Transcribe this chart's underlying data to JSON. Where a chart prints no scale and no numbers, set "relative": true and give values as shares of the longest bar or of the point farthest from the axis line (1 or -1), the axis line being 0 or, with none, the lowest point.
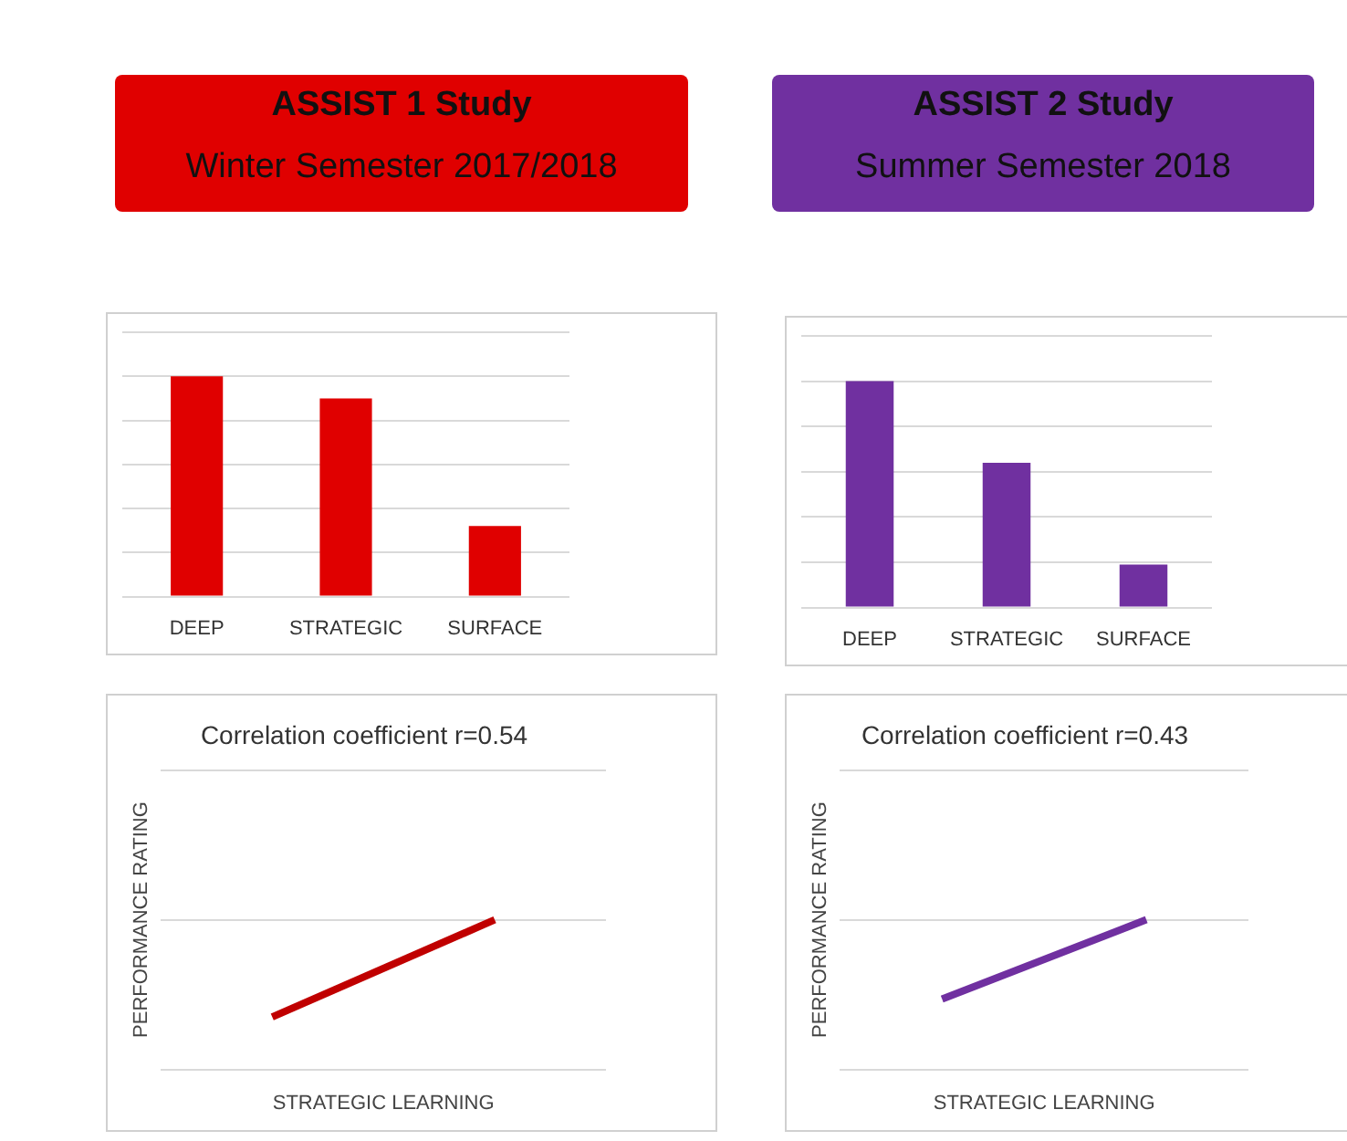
{
  "chart_data": [
    {
      "type": "bar",
      "title": "ASSIST 1 Study",
      "subtitle": "Winter Semester 2017/2018",
      "categories": [
        "DEEP",
        "STRATEGIC",
        "SURFACE"
      ],
      "values": [
        1,
        0.9,
        0.32
      ],
      "color": "#e00000",
      "relative": true,
      "grid": "y"
    },
    {
      "type": "bar",
      "title": "ASSIST 2 Study",
      "subtitle": "Summer Semester 2018",
      "categories": [
        "DEEP",
        "STRATEGIC",
        "SURFACE"
      ],
      "values": [
        1,
        0.64,
        0.19
      ],
      "color": "#7030a0",
      "relative": true,
      "grid": "y"
    },
    {
      "type": "line",
      "title": "Correlation coefficient r=0.54",
      "xlabel": "STRATEGIC LEARNING",
      "ylabel": "PERFORMANCE RATING",
      "categories": [
        null,
        null
      ],
      "values": [
        0.35,
        1
      ],
      "color": "#c00000",
      "relative": true,
      "grid": "y",
      "marker": "none"
    },
    {
      "type": "line",
      "title": "Correlation coefficient r=0.43",
      "xlabel": "STRATEGIC LEARNING",
      "ylabel": "PERFORMANCE RATING",
      "categories": [
        null,
        null
      ],
      "values": [
        0.47,
        1
      ],
      "color": "#7030a0",
      "relative": true,
      "grid": "y",
      "marker": "none"
    }
  ]
}
